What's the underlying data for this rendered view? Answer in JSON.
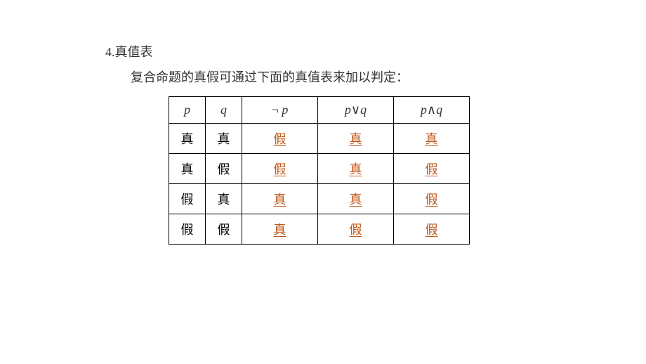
{
  "section": {
    "number": "4.",
    "title": "真值表",
    "subtitle": "复合命题的真假可通过下面的真值表来加以判定："
  },
  "table": {
    "headers": {
      "p": "p",
      "q": "q",
      "notp_prefix": "¬ ",
      "notp_var": "p",
      "por_var1": "p",
      "por_op": "∨",
      "por_var2": "q",
      "pand_var1": "p",
      "pand_op": "∧",
      "pand_var2": "q"
    },
    "rows": [
      {
        "p": "真",
        "q": "真",
        "notp": "假",
        "por": "真",
        "pand": "真"
      },
      {
        "p": "真",
        "q": "假",
        "notp": "假",
        "por": "真",
        "pand": "假"
      },
      {
        "p": "假",
        "q": "真",
        "notp": "真",
        "por": "真",
        "pand": "假"
      },
      {
        "p": "假",
        "q": "假",
        "notp": "真",
        "por": "假",
        "pand": "假"
      }
    ]
  },
  "colors": {
    "answer": "#c0581a",
    "text": "#333333",
    "border": "#000000",
    "background": "#ffffff"
  }
}
